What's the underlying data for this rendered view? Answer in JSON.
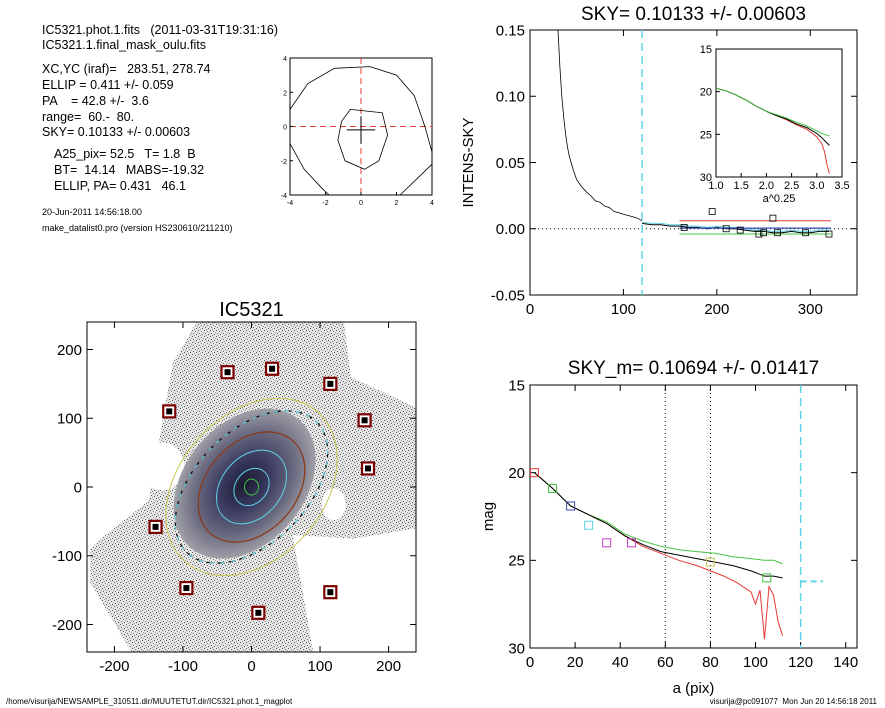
{
  "header": {
    "file_line": "IC5321.phot.1.fits   (2011-03-31T19:31:16)",
    "mask_line": "IC5321.1.final_mask_oulu.fits",
    "xcyc": "XC,YC (iraf)=   283.51, 278.74",
    "ellip": "ELLIP = 0.411 +/- 0.059",
    "pa": "PA    = 42.8 +/-  3.6",
    "range": "range=  60.-  80.",
    "sky": "SKY= 0.10133 +/- 0.00603",
    "a25": "A25_pix= 52.5   T= 1.8  B",
    "bt": "BT=  14.14   MABS=-19.32",
    "ellip_pa": "ELLIP, PA= 0.431   46.1",
    "date": "20-Jun-2011 14:56:18.00",
    "program": "make_datalist0.pro (version HS230610/211210)"
  },
  "footer": {
    "path": "/home/visurija/NEWSAMPLE_310511.dir/MUUTETUT.dir/IC5321.phot.1_magplot",
    "user": "visurija@pc091077  Mon Jun 20 14:56:18 2011"
  },
  "colors": {
    "cyan": "#5fd3e6",
    "red": "#e53935",
    "green": "#43c443",
    "black": "#000000",
    "blue": "#3b4bb0",
    "magenta": "#c040c0",
    "brown": "#8b3a1a",
    "darkred": "#7a0000"
  },
  "chart_data": [
    {
      "type": "line",
      "id": "contour_inset",
      "title": "",
      "xlim": [
        -4,
        4
      ],
      "ylim": [
        -4,
        4
      ],
      "xticks": [
        "-4",
        "-2",
        "0",
        "2",
        "4"
      ],
      "yticks": [
        "4",
        "2",
        "0",
        "-2",
        "-4"
      ],
      "series": [
        {
          "name": "",
          "x": [
            -0.6,
            1.2,
            1.5,
            1.0,
            0.2,
            -0.9,
            -1.3,
            -1.1,
            -0.6
          ],
          "y": [
            1.0,
            0.8,
            -0.5,
            -2.0,
            -2.5,
            -2.0,
            -0.8,
            0.3,
            1.0
          ]
        },
        {
          "name": "",
          "x": [
            -4.0,
            -3.0,
            -1.5,
            0.5,
            2.0,
            3.0,
            3.6,
            4.0
          ],
          "y": [
            1.0,
            2.5,
            3.4,
            3.5,
            3.0,
            1.8,
            0.0,
            -1.5
          ]
        },
        {
          "name": "",
          "x": [
            -4.0,
            -3.2,
            -2.2,
            -1.8
          ],
          "y": [
            -1.0,
            -2.5,
            -3.6,
            -4.0
          ]
        },
        {
          "name": "",
          "x": [
            2.2,
            3.2,
            4.0
          ],
          "y": [
            -4.0,
            -3.0,
            -2.2
          ]
        }
      ]
    },
    {
      "type": "line",
      "id": "sky_plot",
      "title": "SKY= 0.10133 +/- 0.00603",
      "xlabel": "",
      "ylabel": "INTENS-SKY",
      "xlim": [
        0,
        350
      ],
      "ylim": [
        -0.05,
        0.15
      ],
      "xticks": [
        "0",
        "100",
        "200",
        "300"
      ],
      "yticks": [
        "0.15",
        "0.10",
        "0.05",
        "0.00",
        "-0.05"
      ],
      "vline_x": 120,
      "series": [
        {
          "name": "",
          "x": [
            30,
            32,
            34,
            36,
            38,
            40,
            42,
            44,
            46,
            48,
            50,
            55,
            60,
            65,
            70,
            75,
            80,
            85,
            90,
            95,
            100,
            105,
            110,
            115,
            120
          ],
          "y": [
            0.15,
            0.122,
            0.1,
            0.085,
            0.072,
            0.062,
            0.055,
            0.05,
            0.045,
            0.041,
            0.037,
            0.032,
            0.028,
            0.025,
            0.021,
            0.02,
            0.017,
            0.016,
            0.013,
            0.012,
            0.011,
            0.01,
            0.009,
            0.008,
            0.006
          ]
        },
        {
          "name": "",
          "x": [
            120,
            130,
            140,
            150,
            160,
            170,
            180,
            190,
            200,
            210,
            220,
            230,
            240,
            250,
            260,
            270,
            280,
            290,
            300,
            310,
            320
          ],
          "y": [
            0.005,
            0.004,
            0.004,
            0.003,
            0.003,
            0.002,
            0.002,
            0.001,
            0.002,
            0.001,
            0.001,
            0.0,
            -0.001,
            -0.001,
            -0.002,
            -0.002,
            -0.001,
            -0.002,
            -0.002,
            -0.001,
            -0.001
          ]
        }
      ],
      "points": {
        "x": [
          165,
          195,
          210,
          225,
          245,
          250,
          260,
          265,
          295,
          320
        ],
        "y": [
          0.001,
          0.013,
          0.0,
          -0.001,
          -0.004,
          -0.003,
          0.008,
          -0.003,
          -0.003,
          -0.004
        ]
      },
      "inset": {
        "xlim": [
          1.0,
          3.5
        ],
        "ylim": [
          15,
          30
        ],
        "xticks": [
          "1.0",
          "1.5",
          "2.0",
          "2.5",
          "3.0",
          "3.5"
        ],
        "yticks": [
          "15",
          "20",
          "25",
          "30"
        ],
        "xlabel": "a^0.25"
      }
    },
    {
      "type": "scatter",
      "id": "image_panel",
      "title": "IC5321",
      "xlim": [
        -240,
        240
      ],
      "ylim": [
        -240,
        240
      ],
      "xticks": [
        "-200",
        "-100",
        "0",
        "100",
        "200"
      ],
      "yticks": [
        "200",
        "100",
        "0",
        "-100",
        "-200"
      ],
      "points": {
        "x": [
          -35,
          30,
          115,
          -120,
          165,
          170,
          -140,
          -95,
          10,
          115
        ],
        "y": [
          167,
          172,
          150,
          110,
          97,
          27,
          -58,
          -147,
          -183,
          -153
        ]
      }
    },
    {
      "type": "line",
      "id": "mag_profile",
      "title": "SKY_m=  0.10694 +/- 0.01417",
      "xlabel": "a (pix)",
      "ylabel": "mag",
      "xlim": [
        0,
        145
      ],
      "ylim": [
        15,
        30
      ],
      "xticks": [
        "0",
        "20",
        "40",
        "60",
        "80",
        "100",
        "120",
        "140"
      ],
      "yticks": [
        "15",
        "20",
        "25",
        "30"
      ],
      "vlines_dotted": [
        60,
        80
      ],
      "vline_dashed": 120,
      "series": [
        {
          "name": "",
          "x": [
            2,
            10,
            18,
            26,
            34,
            42,
            50,
            58,
            66,
            74,
            82,
            90,
            98,
            104,
            108,
            112
          ],
          "y": [
            20.0,
            20.9,
            21.9,
            22.4,
            22.9,
            23.6,
            24.1,
            24.5,
            24.7,
            24.9,
            25.1,
            25.3,
            25.6,
            25.9,
            25.9,
            26.0
          ]
        },
        {
          "name": "",
          "x": [
            2,
            10,
            18,
            26,
            34,
            42,
            50,
            58,
            66,
            74,
            80,
            86,
            92,
            98,
            100,
            102,
            104,
            106,
            108,
            110,
            112
          ],
          "y": [
            20.0,
            20.9,
            21.9,
            22.4,
            22.9,
            23.6,
            24.2,
            24.6,
            25.0,
            25.3,
            25.6,
            25.9,
            26.3,
            26.8,
            27.5,
            26.7,
            29.5,
            26.5,
            27.0,
            28.5,
            29.3
          ]
        },
        {
          "name": "",
          "x": [
            2,
            10,
            18,
            26,
            34,
            42,
            50,
            58,
            66,
            74,
            82,
            90,
            98,
            104,
            108,
            112
          ],
          "y": [
            20.0,
            20.9,
            21.9,
            22.4,
            22.8,
            23.5,
            23.9,
            24.2,
            24.4,
            24.5,
            24.6,
            24.8,
            24.9,
            25.0,
            25.0,
            25.2
          ]
        }
      ],
      "sky_segment": {
        "x": [
          120,
          130
        ],
        "y": [
          26.2,
          26.2
        ]
      },
      "markers": {
        "x": [
          2,
          10,
          18,
          26,
          34,
          45,
          80,
          105
        ],
        "y": [
          20.0,
          20.9,
          21.9,
          23.0,
          24.0,
          24.0,
          25.1,
          26.0
        ]
      }
    }
  ]
}
